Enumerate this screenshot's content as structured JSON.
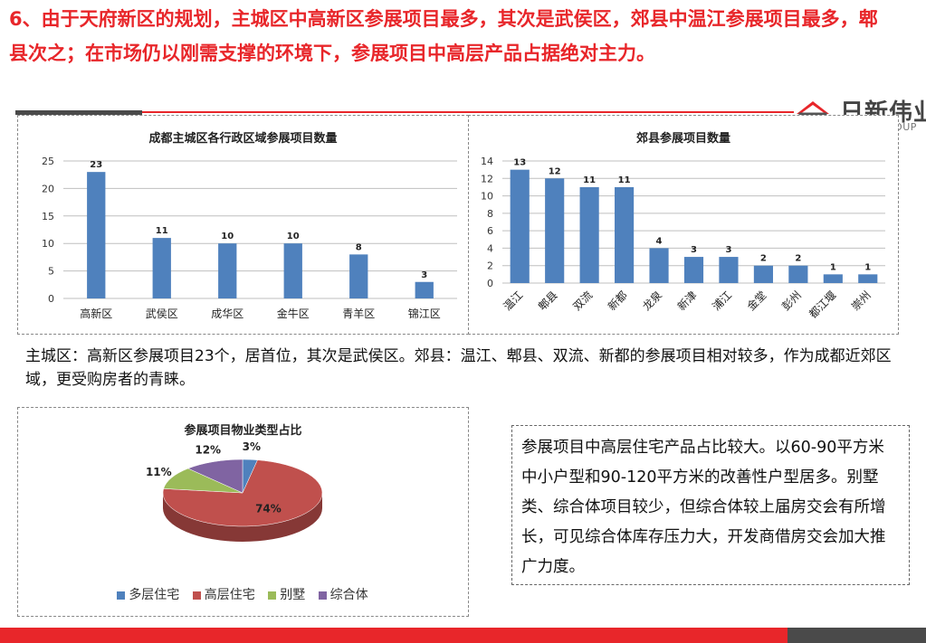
{
  "headline": "6、由于天府新区的规划，主城区中高新区参展项目最多，其次是武侯区，郊县中温江参展项目最多，郫县次之；在市场仍以刚需支撑的环境下，参展项目中高层产品占据绝对主力。",
  "logo": {
    "cn": "日新伟业",
    "en": "RISING GROUP"
  },
  "colors": {
    "accent": "#e8262a",
    "bar": "#4f81bd",
    "dark": "#4a4a4a"
  },
  "chart_data": [
    {
      "type": "bar",
      "title": "成都主城区各行政区域参展项目数量",
      "categories": [
        "高新区",
        "武侯区",
        "成华区",
        "金牛区",
        "青羊区",
        "锦江区"
      ],
      "values": [
        23,
        11,
        10,
        10,
        8,
        3
      ],
      "ylim": [
        0,
        25
      ],
      "yticks": [
        0,
        5,
        10,
        15,
        20,
        25
      ],
      "grid": true
    },
    {
      "type": "bar",
      "title": "郊县参展项目数量",
      "categories": [
        "温江",
        "郫县",
        "双流",
        "新都",
        "龙泉",
        "新津",
        "浦江",
        "金堂",
        "彭州",
        "都江堰",
        "崇州"
      ],
      "values": [
        13,
        12,
        11,
        11,
        4,
        3,
        3,
        2,
        2,
        1,
        1
      ],
      "ylim": [
        0,
        14
      ],
      "yticks": [
        0,
        2,
        4,
        6,
        8,
        10,
        12,
        14
      ],
      "grid": true
    },
    {
      "type": "pie",
      "title": "参展项目物业类型占比",
      "labels": [
        "多层住宅",
        "高层住宅",
        "别墅",
        "综合体"
      ],
      "values": [
        3,
        74,
        11,
        12
      ],
      "value_labels": [
        "3%",
        "74%",
        "11%",
        "12%"
      ],
      "colors": [
        "#4f81bd",
        "#c0504d",
        "#9bbb59",
        "#8064a2"
      ],
      "legend": "bottom"
    }
  ],
  "paragraph": "主城区：高新区参展项目23个，居首位，其次是武侯区。郊县：温江、郫县、双流、新都的参展项目相对较多，作为成都近郊区域，更受购房者的青睐。",
  "note": "参展项目中高层住宅产品占比较大。以60-90平方米中小户型和90-120平方米的改善性户型居多。别墅类、综合体项目较少，但综合体较上届房交会有所增长，可见综合体库存压力大，开发商借房交会加大推广力度。"
}
